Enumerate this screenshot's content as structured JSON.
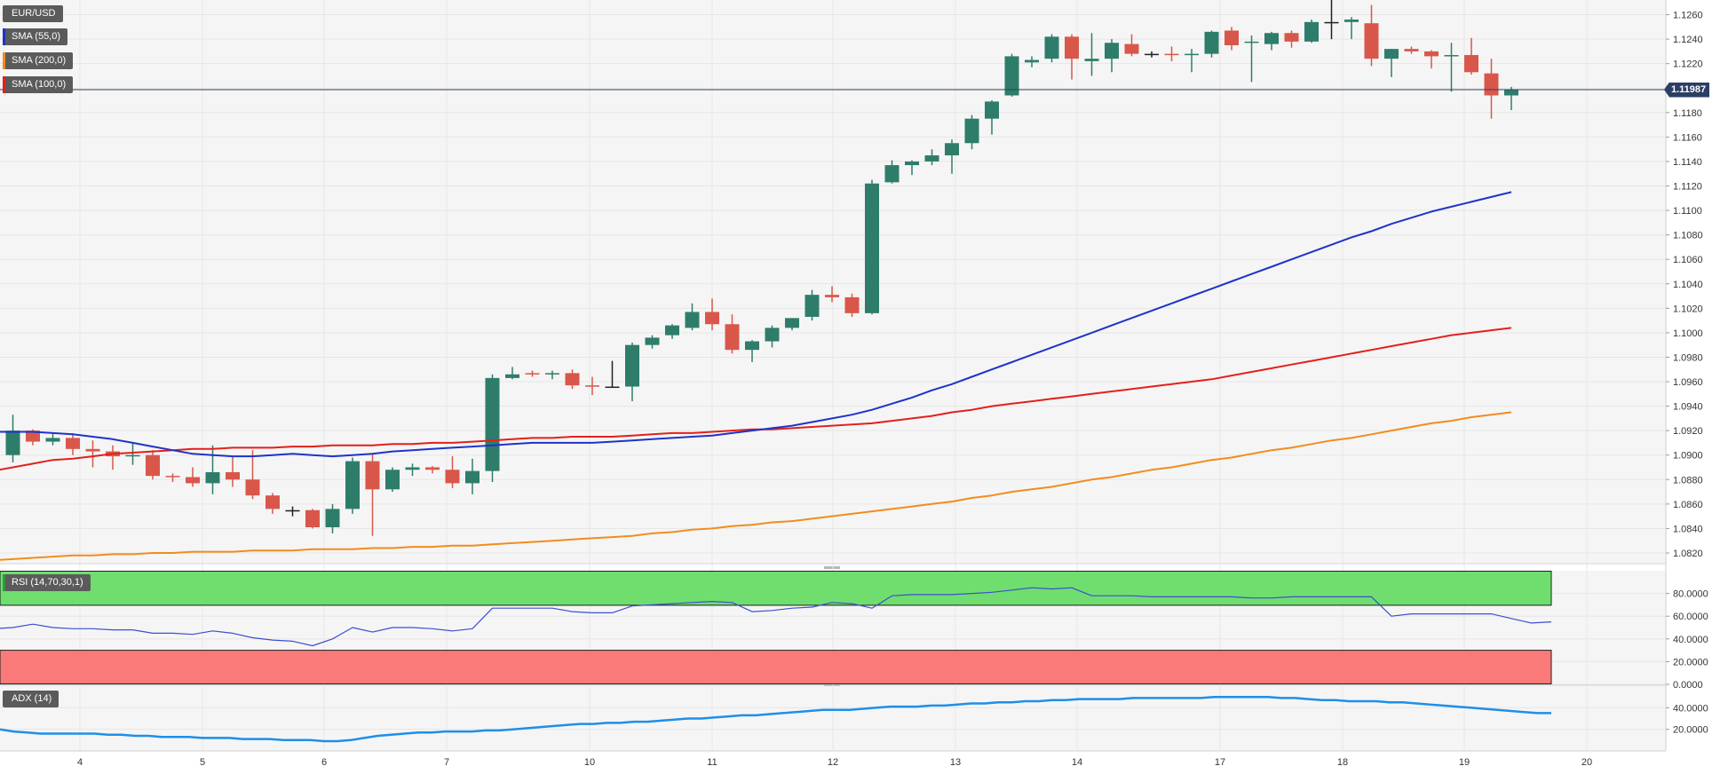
{
  "legends": {
    "symbol": "EUR/USD",
    "sma55": "SMA (55,0)",
    "sma200": "SMA (200,0)",
    "sma100": "SMA (100,0)",
    "rsi": "RSI (14,70,30,1)",
    "adx": "ADX (14)"
  },
  "colors": {
    "up": "#2e7d6b",
    "down": "#d9574a",
    "sma55": "#1f33c9",
    "sma100": "#e3201b",
    "sma200": "#f28c1e",
    "rsi_line": "#3b4fd1",
    "rsi_overbought": "#6fde6f",
    "rsi_oversold": "#fa7a7a",
    "adx_line": "#1e8fe8",
    "last_price": "#2b3e63",
    "grid": "#e6e6e6",
    "panel_bg": "#f5f5f5"
  },
  "chart_data": [
    {
      "type": "candlestick",
      "title": "EUR/USD",
      "ylim": [
        1.0812,
        1.1272
      ],
      "y_ticks": [
        "1.1260",
        "1.1240",
        "1.1220",
        "1.1200",
        "1.1180",
        "1.1160",
        "1.1140",
        "1.1120",
        "1.1100",
        "1.1080",
        "1.1060",
        "1.1040",
        "1.1020",
        "1.1000",
        "1.0980",
        "1.0960",
        "1.0940",
        "1.0920",
        "1.0900",
        "1.0880",
        "1.0860",
        "1.0840",
        "1.0820"
      ],
      "x_labels": [
        "4",
        "5",
        "6",
        "7",
        "10",
        "11",
        "12",
        "13",
        "14",
        "17",
        "18",
        "19",
        "20"
      ],
      "last_price": "1.11987",
      "candles": [
        {
          "o": 1.0885,
          "h": 1.0905,
          "l": 1.0878,
          "c": 1.0895
        },
        {
          "o": 1.09,
          "h": 1.0933,
          "l": 1.0894,
          "c": 1.092
        },
        {
          "o": 1.092,
          "h": 1.0921,
          "l": 1.0908,
          "c": 1.0911
        },
        {
          "o": 1.0911,
          "h": 1.0918,
          "l": 1.0908,
          "c": 1.0914
        },
        {
          "o": 1.0914,
          "h": 1.0918,
          "l": 1.09,
          "c": 1.0905
        },
        {
          "o": 1.0905,
          "h": 1.0912,
          "l": 1.089,
          "c": 1.0903
        },
        {
          "o": 1.0903,
          "h": 1.0908,
          "l": 1.0888,
          "c": 1.0899
        },
        {
          "o": 1.0899,
          "h": 1.091,
          "l": 1.0892,
          "c": 1.09
        },
        {
          "o": 1.09,
          "h": 1.0904,
          "l": 1.088,
          "c": 1.0883
        },
        {
          "o": 1.0883,
          "h": 1.0885,
          "l": 1.0878,
          "c": 1.0882
        },
        {
          "o": 1.0882,
          "h": 1.089,
          "l": 1.0874,
          "c": 1.0877
        },
        {
          "o": 1.0877,
          "h": 1.0908,
          "l": 1.0868,
          "c": 1.0886
        },
        {
          "o": 1.0886,
          "h": 1.0899,
          "l": 1.0874,
          "c": 1.088
        },
        {
          "o": 1.088,
          "h": 1.0904,
          "l": 1.0864,
          "c": 1.0867
        },
        {
          "o": 1.0867,
          "h": 1.0869,
          "l": 1.0852,
          "c": 1.0856
        },
        {
          "o": 1.0855,
          "h": 1.0858,
          "l": 1.085,
          "c": 1.0855
        },
        {
          "o": 1.0855,
          "h": 1.0856,
          "l": 1.084,
          "c": 1.0841
        },
        {
          "o": 1.0841,
          "h": 1.086,
          "l": 1.0836,
          "c": 1.0856
        },
        {
          "o": 1.0856,
          "h": 1.0898,
          "l": 1.0852,
          "c": 1.0895
        },
        {
          "o": 1.0895,
          "h": 1.0901,
          "l": 1.0834,
          "c": 1.0872
        },
        {
          "o": 1.0872,
          "h": 1.089,
          "l": 1.087,
          "c": 1.0888
        },
        {
          "o": 1.0888,
          "h": 1.0893,
          "l": 1.0883,
          "c": 1.089
        },
        {
          "o": 1.089,
          "h": 1.0891,
          "l": 1.0885,
          "c": 1.0888
        },
        {
          "o": 1.0888,
          "h": 1.0899,
          "l": 1.0873,
          "c": 1.0877
        },
        {
          "o": 1.0877,
          "h": 1.0897,
          "l": 1.0868,
          "c": 1.0887
        },
        {
          "o": 1.0887,
          "h": 1.0966,
          "l": 1.0878,
          "c": 1.0963
        },
        {
          "o": 1.0963,
          "h": 1.0972,
          "l": 1.0962,
          "c": 1.0966
        },
        {
          "o": 1.0967,
          "h": 1.0969,
          "l": 1.0964,
          "c": 1.0966
        },
        {
          "o": 1.0966,
          "h": 1.0969,
          "l": 1.0962,
          "c": 1.0967
        },
        {
          "o": 1.0967,
          "h": 1.097,
          "l": 1.0954,
          "c": 1.0957
        },
        {
          "o": 1.0957,
          "h": 1.0964,
          "l": 1.0949,
          "c": 1.0956
        },
        {
          "o": 1.0956,
          "h": 1.0977,
          "l": 1.0955,
          "c": 1.0956
        },
        {
          "o": 1.0956,
          "h": 1.0992,
          "l": 1.0944,
          "c": 1.099
        },
        {
          "o": 1.099,
          "h": 1.0998,
          "l": 1.0987,
          "c": 1.0996
        },
        {
          "o": 1.0998,
          "h": 1.1007,
          "l": 1.0995,
          "c": 1.1006
        },
        {
          "o": 1.1004,
          "h": 1.1024,
          "l": 1.1002,
          "c": 1.1017
        },
        {
          "o": 1.1017,
          "h": 1.1028,
          "l": 1.1002,
          "c": 1.1007
        },
        {
          "o": 1.1007,
          "h": 1.1015,
          "l": 1.0983,
          "c": 1.0986
        },
        {
          "o": 1.0986,
          "h": 1.0994,
          "l": 1.0976,
          "c": 1.0993
        },
        {
          "o": 1.0993,
          "h": 1.1006,
          "l": 1.0988,
          "c": 1.1004
        },
        {
          "o": 1.1004,
          "h": 1.1012,
          "l": 1.1002,
          "c": 1.1012
        },
        {
          "o": 1.1013,
          "h": 1.1035,
          "l": 1.101,
          "c": 1.1031
        },
        {
          "o": 1.1031,
          "h": 1.1038,
          "l": 1.1025,
          "c": 1.1029
        },
        {
          "o": 1.1029,
          "h": 1.1032,
          "l": 1.1013,
          "c": 1.1016
        },
        {
          "o": 1.1016,
          "h": 1.1125,
          "l": 1.1015,
          "c": 1.1122
        },
        {
          "o": 1.1123,
          "h": 1.1141,
          "l": 1.1122,
          "c": 1.1137
        },
        {
          "o": 1.1137,
          "h": 1.1141,
          "l": 1.1129,
          "c": 1.114
        },
        {
          "o": 1.114,
          "h": 1.115,
          "l": 1.1137,
          "c": 1.1145
        },
        {
          "o": 1.1145,
          "h": 1.1158,
          "l": 1.113,
          "c": 1.1155
        },
        {
          "o": 1.1155,
          "h": 1.1178,
          "l": 1.115,
          "c": 1.1175
        },
        {
          "o": 1.1175,
          "h": 1.119,
          "l": 1.1162,
          "c": 1.1189
        },
        {
          "o": 1.1194,
          "h": 1.1228,
          "l": 1.1193,
          "c": 1.1226
        },
        {
          "o": 1.1221,
          "h": 1.1226,
          "l": 1.1217,
          "c": 1.1223
        },
        {
          "o": 1.1224,
          "h": 1.1244,
          "l": 1.1221,
          "c": 1.1242
        },
        {
          "o": 1.1242,
          "h": 1.1244,
          "l": 1.1207,
          "c": 1.1224
        },
        {
          "o": 1.1222,
          "h": 1.1245,
          "l": 1.121,
          "c": 1.1224
        },
        {
          "o": 1.1224,
          "h": 1.124,
          "l": 1.1213,
          "c": 1.1237
        },
        {
          "o": 1.1236,
          "h": 1.1244,
          "l": 1.1226,
          "c": 1.1228
        },
        {
          "o": 1.1228,
          "h": 1.123,
          "l": 1.1225,
          "c": 1.1228
        },
        {
          "o": 1.1228,
          "h": 1.1234,
          "l": 1.1222,
          "c": 1.1227
        },
        {
          "o": 1.1227,
          "h": 1.1232,
          "l": 1.1213,
          "c": 1.1228
        },
        {
          "o": 1.1228,
          "h": 1.1247,
          "l": 1.1225,
          "c": 1.1246
        },
        {
          "o": 1.1247,
          "h": 1.125,
          "l": 1.1231,
          "c": 1.1235
        },
        {
          "o": 1.1237,
          "h": 1.1243,
          "l": 1.1205,
          "c": 1.1238
        },
        {
          "o": 1.1236,
          "h": 1.1246,
          "l": 1.1231,
          "c": 1.1245
        },
        {
          "o": 1.1245,
          "h": 1.1247,
          "l": 1.1233,
          "c": 1.1238
        },
        {
          "o": 1.1238,
          "h": 1.1256,
          "l": 1.1237,
          "c": 1.1254
        },
        {
          "o": 1.1254,
          "h": 1.1276,
          "l": 1.124,
          "c": 1.1254
        },
        {
          "o": 1.1254,
          "h": 1.1258,
          "l": 1.124,
          "c": 1.1256
        },
        {
          "o": 1.1253,
          "h": 1.1268,
          "l": 1.1218,
          "c": 1.1224
        },
        {
          "o": 1.1224,
          "h": 1.1232,
          "l": 1.1209,
          "c": 1.1232
        },
        {
          "o": 1.1232,
          "h": 1.1234,
          "l": 1.1228,
          "c": 1.123
        },
        {
          "o": 1.123,
          "h": 1.1231,
          "l": 1.1216,
          "c": 1.1226
        },
        {
          "o": 1.1226,
          "h": 1.1237,
          "l": 1.1197,
          "c": 1.1227
        },
        {
          "o": 1.1227,
          "h": 1.1241,
          "l": 1.1211,
          "c": 1.1213
        },
        {
          "o": 1.1212,
          "h": 1.1224,
          "l": 1.1175,
          "c": 1.1194
        },
        {
          "o": 1.1194,
          "h": 1.1201,
          "l": 1.1182,
          "c": 1.1199
        }
      ],
      "sma55": [
        1.0919,
        1.0919,
        1.0919,
        1.0918,
        1.0917,
        1.0915,
        1.0913,
        1.091,
        1.0907,
        1.0904,
        1.0901,
        1.09,
        1.0899,
        1.0899,
        1.09,
        1.0901,
        1.09,
        1.0899,
        1.09,
        1.0901,
        1.0903,
        1.0904,
        1.0905,
        1.0906,
        1.0907,
        1.0908,
        1.0909,
        1.091,
        1.091,
        1.091,
        1.091,
        1.0911,
        1.0912,
        1.0913,
        1.0914,
        1.0915,
        1.0916,
        1.0918,
        1.092,
        1.0922,
        1.0924,
        1.0927,
        1.093,
        1.0933,
        1.0937,
        1.0942,
        1.0947,
        1.0953,
        1.0958,
        1.0964,
        1.097,
        1.0976,
        1.0982,
        1.0988,
        1.0994,
        1.1,
        1.1006,
        1.1012,
        1.1018,
        1.1024,
        1.103,
        1.1036,
        1.1042,
        1.1048,
        1.1054,
        1.106,
        1.1066,
        1.1072,
        1.1078,
        1.1083,
        1.1089,
        1.1094,
        1.1099,
        1.1103,
        1.1107,
        1.1111,
        1.1115
      ],
      "sma100": [
        1.0887,
        1.089,
        1.0893,
        1.0896,
        1.0897,
        1.0899,
        1.0901,
        1.0902,
        1.0903,
        1.0904,
        1.0905,
        1.0905,
        1.0906,
        1.0906,
        1.0906,
        1.0907,
        1.0907,
        1.0908,
        1.0908,
        1.0908,
        1.0909,
        1.0909,
        1.091,
        1.091,
        1.0911,
        1.0912,
        1.0913,
        1.0914,
        1.0914,
        1.0915,
        1.0915,
        1.0915,
        1.0916,
        1.0917,
        1.0918,
        1.0918,
        1.0919,
        1.092,
        1.0921,
        1.0921,
        1.0922,
        1.0923,
        1.0924,
        1.0925,
        1.0926,
        1.0928,
        1.093,
        1.0932,
        1.0935,
        1.0937,
        1.094,
        1.0942,
        1.0944,
        1.0946,
        1.0948,
        1.095,
        1.0952,
        1.0954,
        1.0956,
        1.0958,
        1.096,
        1.0962,
        1.0965,
        1.0968,
        1.0971,
        1.0974,
        1.0977,
        1.098,
        1.0983,
        1.0986,
        1.0989,
        1.0992,
        1.0995,
        1.0998,
        1.1,
        1.1002,
        1.1004
      ],
      "sma200": [
        1.0814,
        1.0815,
        1.0816,
        1.0817,
        1.0818,
        1.0818,
        1.0819,
        1.0819,
        1.082,
        1.082,
        1.0821,
        1.0821,
        1.0821,
        1.0822,
        1.0822,
        1.0822,
        1.0823,
        1.0823,
        1.0823,
        1.0824,
        1.0824,
        1.0825,
        1.0825,
        1.0826,
        1.0826,
        1.0827,
        1.0828,
        1.0829,
        1.083,
        1.0831,
        1.0832,
        1.0833,
        1.0834,
        1.0836,
        1.0837,
        1.0839,
        1.084,
        1.0842,
        1.0843,
        1.0845,
        1.0846,
        1.0848,
        1.085,
        1.0852,
        1.0854,
        1.0856,
        1.0858,
        1.086,
        1.0862,
        1.0865,
        1.0867,
        1.087,
        1.0872,
        1.0874,
        1.0877,
        1.088,
        1.0882,
        1.0885,
        1.0888,
        1.089,
        1.0893,
        1.0896,
        1.0898,
        1.0901,
        1.0904,
        1.0906,
        1.0909,
        1.0912,
        1.0914,
        1.0917,
        1.092,
        1.0923,
        1.0926,
        1.0928,
        1.0931,
        1.0933,
        1.0935
      ]
    },
    {
      "type": "line",
      "title": "RSI (14,70,30,1)",
      "ylim": [
        0,
        100
      ],
      "y_ticks": [
        "80.0000",
        "60.0000",
        "40.0000",
        "20.0000",
        "0.0000"
      ],
      "overbought": 70,
      "oversold": 30,
      "values": [
        49,
        50,
        53,
        50,
        49,
        49,
        48,
        48,
        45,
        45,
        44,
        47,
        45,
        41,
        39,
        38,
        34,
        40,
        50,
        46,
        50,
        50,
        49,
        47,
        49,
        67,
        67,
        67,
        67,
        64,
        63,
        63,
        69,
        70,
        71,
        72,
        73,
        72,
        64,
        65,
        67,
        68,
        72,
        71,
        67,
        78,
        79,
        79,
        79,
        80,
        81,
        83,
        85,
        84,
        85,
        78,
        78,
        78,
        77,
        77,
        77,
        77,
        77,
        76,
        76,
        77,
        77,
        77,
        77,
        77,
        60,
        62,
        62,
        62,
        62,
        62,
        58,
        54,
        55
      ]
    },
    {
      "type": "line",
      "title": "ADX (14)",
      "ylim": [
        0,
        60
      ],
      "y_ticks": [
        "40.0000",
        "20.0000"
      ],
      "values": [
        20,
        18,
        17,
        16,
        16,
        16,
        16,
        16,
        15,
        15,
        14,
        14,
        13,
        13,
        13,
        12,
        12,
        12,
        11,
        11,
        11,
        10,
        10,
        10,
        9,
        9,
        10,
        12,
        14,
        15,
        16,
        17,
        17,
        18,
        18,
        18,
        19,
        19,
        20,
        21,
        22,
        23,
        24,
        25,
        25,
        26,
        26,
        27,
        27,
        28,
        29,
        30,
        30,
        31,
        32,
        33,
        33,
        34,
        35,
        36,
        37,
        38,
        38,
        38,
        39,
        40,
        41,
        41,
        41,
        42,
        42,
        43,
        44,
        44,
        45,
        45,
        46,
        46,
        47,
        47,
        48,
        48,
        48,
        48,
        49,
        49,
        49,
        49,
        49,
        49,
        50,
        50,
        50,
        50,
        50,
        49,
        49,
        48,
        47,
        47,
        46,
        46,
        46,
        45,
        45,
        44,
        43,
        42,
        41,
        40,
        39,
        38,
        37,
        36,
        35,
        35
      ]
    }
  ]
}
